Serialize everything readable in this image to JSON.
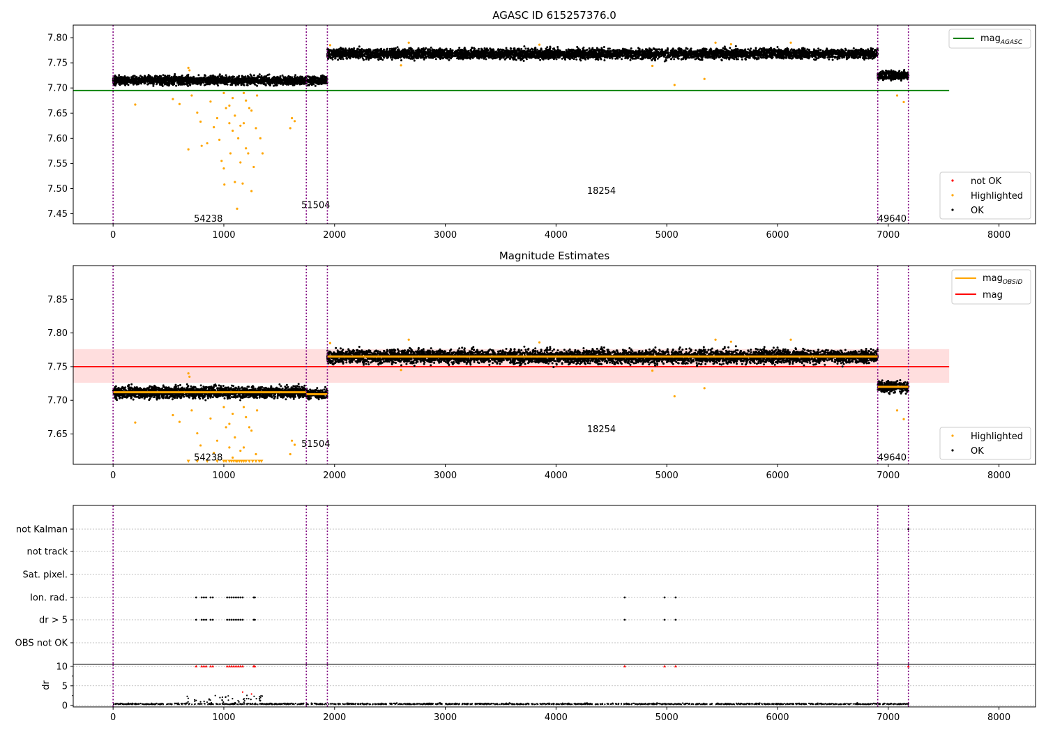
{
  "chart_data": [
    {
      "type": "scatter",
      "title": "AGASC ID 615257376.0",
      "xlim": [
        -360,
        8330
      ],
      "ylim": [
        7.43,
        7.825
      ],
      "xticks": [
        0,
        1000,
        2000,
        3000,
        4000,
        5000,
        6000,
        7000,
        8000
      ],
      "xtick_labels": [
        "0",
        "1000",
        "2000",
        "3000",
        "4000",
        "5000",
        "6000",
        "7000",
        "8000"
      ],
      "yticks": [
        7.45,
        7.5,
        7.55,
        7.6,
        7.65,
        7.7,
        7.75,
        7.8
      ],
      "ytick_labels": [
        "7.45",
        "7.50",
        "7.55",
        "7.60",
        "7.65",
        "7.70",
        "7.75",
        "7.80"
      ],
      "vlines": [
        0,
        1745,
        1935,
        6905,
        7182
      ],
      "segments": [
        {
          "x0": 0,
          "x1": 1935,
          "mean": 7.715,
          "spread": 0.006
        },
        {
          "x0": 1935,
          "x1": 6905,
          "mean": 7.768,
          "spread": 0.007
        },
        {
          "x0": 6905,
          "x1": 7182,
          "mean": 7.725,
          "spread": 0.006
        }
      ],
      "hline": {
        "name": "mag_AGASC",
        "y": 7.695,
        "x0": -360,
        "x1": 7550,
        "color": "#008000"
      },
      "highlighted": [
        [
          200,
          7.667
        ],
        [
          540,
          7.678
        ],
        [
          600,
          7.668
        ],
        [
          680,
          7.578
        ],
        [
          710,
          7.685
        ],
        [
          760,
          7.651
        ],
        [
          790,
          7.633
        ],
        [
          800,
          7.585
        ],
        [
          850,
          7.59
        ],
        [
          880,
          7.673
        ],
        [
          910,
          7.622
        ],
        [
          940,
          7.64
        ],
        [
          960,
          7.597
        ],
        [
          980,
          7.555
        ],
        [
          1000,
          7.54
        ],
        [
          1005,
          7.508
        ],
        [
          1020,
          7.66
        ],
        [
          1050,
          7.63
        ],
        [
          1060,
          7.57
        ],
        [
          1080,
          7.615
        ],
        [
          1100,
          7.513
        ],
        [
          1120,
          7.46
        ],
        [
          1130,
          7.6
        ],
        [
          1150,
          7.552
        ],
        [
          1170,
          7.51
        ],
        [
          1180,
          7.63
        ],
        [
          1200,
          7.58
        ],
        [
          1220,
          7.57
        ],
        [
          1250,
          7.495
        ],
        [
          1270,
          7.543
        ],
        [
          1290,
          7.62
        ],
        [
          1330,
          7.6
        ],
        [
          1350,
          7.57
        ],
        [
          1600,
          7.62
        ],
        [
          1615,
          7.64
        ],
        [
          1640,
          7.634
        ],
        [
          1000,
          7.69
        ],
        [
          1050,
          7.665
        ],
        [
          1100,
          7.645
        ],
        [
          1150,
          7.625
        ],
        [
          1200,
          7.675
        ],
        [
          1250,
          7.655
        ],
        [
          1300,
          7.685
        ],
        [
          1080,
          7.68
        ],
        [
          1180,
          7.69
        ],
        [
          1230,
          7.66
        ],
        [
          680,
          7.74
        ],
        [
          690,
          7.735
        ],
        [
          2600,
          7.745
        ],
        [
          4870,
          7.744
        ],
        [
          5070,
          7.706
        ],
        [
          5340,
          7.718
        ],
        [
          7080,
          7.685
        ],
        [
          7140,
          7.672
        ],
        [
          1960,
          7.785
        ],
        [
          2670,
          7.79
        ],
        [
          3850,
          7.786
        ],
        [
          5440,
          7.79
        ],
        [
          5580,
          7.787
        ],
        [
          6120,
          7.79
        ]
      ],
      "annotations": [
        {
          "x": 730,
          "y": 7.44,
          "text": "54238"
        },
        {
          "x": 1700,
          "y": 7.467,
          "text": "51504"
        },
        {
          "x": 4280,
          "y": 7.495,
          "text": "18254"
        },
        {
          "x": 6905,
          "y": 7.44,
          "text": "49640"
        }
      ],
      "legend_top": {
        "placement": "upper right",
        "entries": [
          {
            "name": "mag",
            "subscript": "AGASC",
            "color": "#008000"
          }
        ]
      },
      "legend_bottom": {
        "placement": "lower right",
        "entries": [
          {
            "name": "not OK",
            "color": "#ff0000"
          },
          {
            "name": "Highlighted",
            "color": "#ffa500"
          },
          {
            "name": "OK",
            "color": "#000000"
          }
        ]
      }
    },
    {
      "type": "scatter",
      "title": "Magnitude Estimates",
      "xlim": [
        -360,
        8330
      ],
      "ylim": [
        7.605,
        7.9
      ],
      "xticks": [
        0,
        1000,
        2000,
        3000,
        4000,
        5000,
        6000,
        7000,
        8000
      ],
      "xtick_labels": [
        "0",
        "1000",
        "2000",
        "3000",
        "4000",
        "5000",
        "6000",
        "7000",
        "8000"
      ],
      "yticks": [
        7.65,
        7.7,
        7.75,
        7.8,
        7.85
      ],
      "ytick_labels": [
        "7.65",
        "7.70",
        "7.75",
        "7.80",
        "7.85"
      ],
      "vlines": [
        0,
        1745,
        1935,
        6905,
        7182
      ],
      "segments": [
        {
          "x0": 0,
          "x1": 1745,
          "mean": 7.712,
          "spread": 0.006
        },
        {
          "x0": 1745,
          "x1": 1935,
          "mean": 7.709,
          "spread": 0.005
        },
        {
          "x0": 1935,
          "x1": 6905,
          "mean": 7.765,
          "spread": 0.007
        },
        {
          "x0": 6905,
          "x1": 7182,
          "mean": 7.72,
          "spread": 0.006
        }
      ],
      "obsid_levels": [
        {
          "x0": 0,
          "x1": 1745,
          "y": 7.712
        },
        {
          "x0": 1745,
          "x1": 1935,
          "y": 7.709
        },
        {
          "x0": 1935,
          "x1": 6905,
          "y": 7.765
        },
        {
          "x0": 6905,
          "x1": 7182,
          "y": 7.72
        }
      ],
      "mag_line": {
        "y": 7.75,
        "band": [
          7.726,
          7.776
        ],
        "x0": -360,
        "x1": 7550,
        "color": "#ff0000",
        "band_color": "#ffdede"
      },
      "highlighted": [
        [
          200,
          7.667
        ],
        [
          540,
          7.678
        ],
        [
          600,
          7.668
        ],
        [
          710,
          7.685
        ],
        [
          760,
          7.651
        ],
        [
          790,
          7.633
        ],
        [
          880,
          7.673
        ],
        [
          910,
          7.622
        ],
        [
          940,
          7.64
        ],
        [
          1020,
          7.66
        ],
        [
          1050,
          7.63
        ],
        [
          1080,
          7.615
        ],
        [
          1180,
          7.63
        ],
        [
          1290,
          7.62
        ],
        [
          1600,
          7.62
        ],
        [
          1615,
          7.64
        ],
        [
          1640,
          7.634
        ],
        [
          1000,
          7.69
        ],
        [
          1050,
          7.665
        ],
        [
          1100,
          7.645
        ],
        [
          1150,
          7.625
        ],
        [
          1200,
          7.675
        ],
        [
          1250,
          7.655
        ],
        [
          1300,
          7.685
        ],
        [
          1080,
          7.68
        ],
        [
          1180,
          7.69
        ],
        [
          1230,
          7.66
        ],
        [
          680,
          7.74
        ],
        [
          690,
          7.735
        ],
        [
          2600,
          7.745
        ],
        [
          4870,
          7.744
        ],
        [
          5070,
          7.706
        ],
        [
          5340,
          7.718
        ],
        [
          7080,
          7.685
        ],
        [
          7140,
          7.672
        ],
        [
          1960,
          7.785
        ],
        [
          2670,
          7.79
        ],
        [
          3850,
          7.786
        ],
        [
          5440,
          7.79
        ],
        [
          5580,
          7.787
        ],
        [
          6120,
          7.79
        ]
      ],
      "below_range_x": [
        680,
        760,
        850,
        940,
        1000,
        1020,
        1050,
        1070,
        1090,
        1110,
        1120,
        1140,
        1160,
        1180,
        1200,
        1230,
        1260,
        1290,
        1320,
        1340
      ],
      "annotations": [
        {
          "x": 730,
          "y": 7.615,
          "text": "54238"
        },
        {
          "x": 1700,
          "y": 7.635,
          "text": "51504"
        },
        {
          "x": 4280,
          "y": 7.657,
          "text": "18254"
        },
        {
          "x": 6905,
          "y": 7.615,
          "text": "49640"
        }
      ],
      "legend_top": {
        "placement": "upper right",
        "entries": [
          {
            "name": "mag",
            "subscript": "OBSID",
            "color": "#ffa500"
          },
          {
            "name": "mag",
            "subscript": "",
            "color": "#ff0000"
          }
        ]
      },
      "legend_bottom": {
        "placement": "lower right",
        "entries": [
          {
            "name": "Highlighted",
            "color": "#ffa500"
          },
          {
            "name": "OK",
            "color": "#000000"
          }
        ]
      }
    },
    {
      "type": "scatter",
      "title": "",
      "xlim": [
        -360,
        8330
      ],
      "xticks": [
        0,
        1000,
        2000,
        3000,
        4000,
        5000,
        6000,
        7000,
        8000
      ],
      "xtick_labels": [
        "0",
        "1000",
        "2000",
        "3000",
        "4000",
        "5000",
        "6000",
        "7000",
        "8000"
      ],
      "vlines": [
        0,
        1745,
        1935,
        6905,
        7182
      ],
      "flag_rows": [
        "not Kalman",
        "not track",
        "Sat. pixel.",
        "Ion. rad.",
        "dr > 5",
        "OBS not OK"
      ],
      "flag_points": {
        "Ion. rad.": [
          750,
          800,
          820,
          840,
          880,
          900,
          1030,
          1050,
          1070,
          1090,
          1110,
          1130,
          1150,
          1170,
          1270,
          1280,
          4620,
          4980,
          5080
        ],
        "dr > 5": [
          750,
          800,
          820,
          840,
          880,
          900,
          1030,
          1050,
          1070,
          1090,
          1110,
          1130,
          1150,
          1170,
          1270,
          1280,
          4620,
          4980,
          5080
        ],
        "not Kalman": [
          7182
        ]
      },
      "dr": {
        "ylabel": "dr",
        "ylim": [
          -0.4,
          10.5
        ],
        "yticks": [
          0,
          5,
          10
        ],
        "ytick_labels": [
          "0",
          "5",
          "10"
        ],
        "baseline": 0.25,
        "segment_end": 7182,
        "spike_region": [
          650,
          1350
        ],
        "capped_x": [
          750,
          800,
          820,
          840,
          880,
          900,
          1030,
          1050,
          1070,
          1090,
          1110,
          1130,
          1150,
          1170,
          1270,
          1280,
          4620,
          4980,
          5080,
          7182
        ],
        "cap_value": 10,
        "outliers": [
          [
            1170,
            3.4
          ],
          [
            1250,
            2.9
          ]
        ]
      }
    }
  ]
}
